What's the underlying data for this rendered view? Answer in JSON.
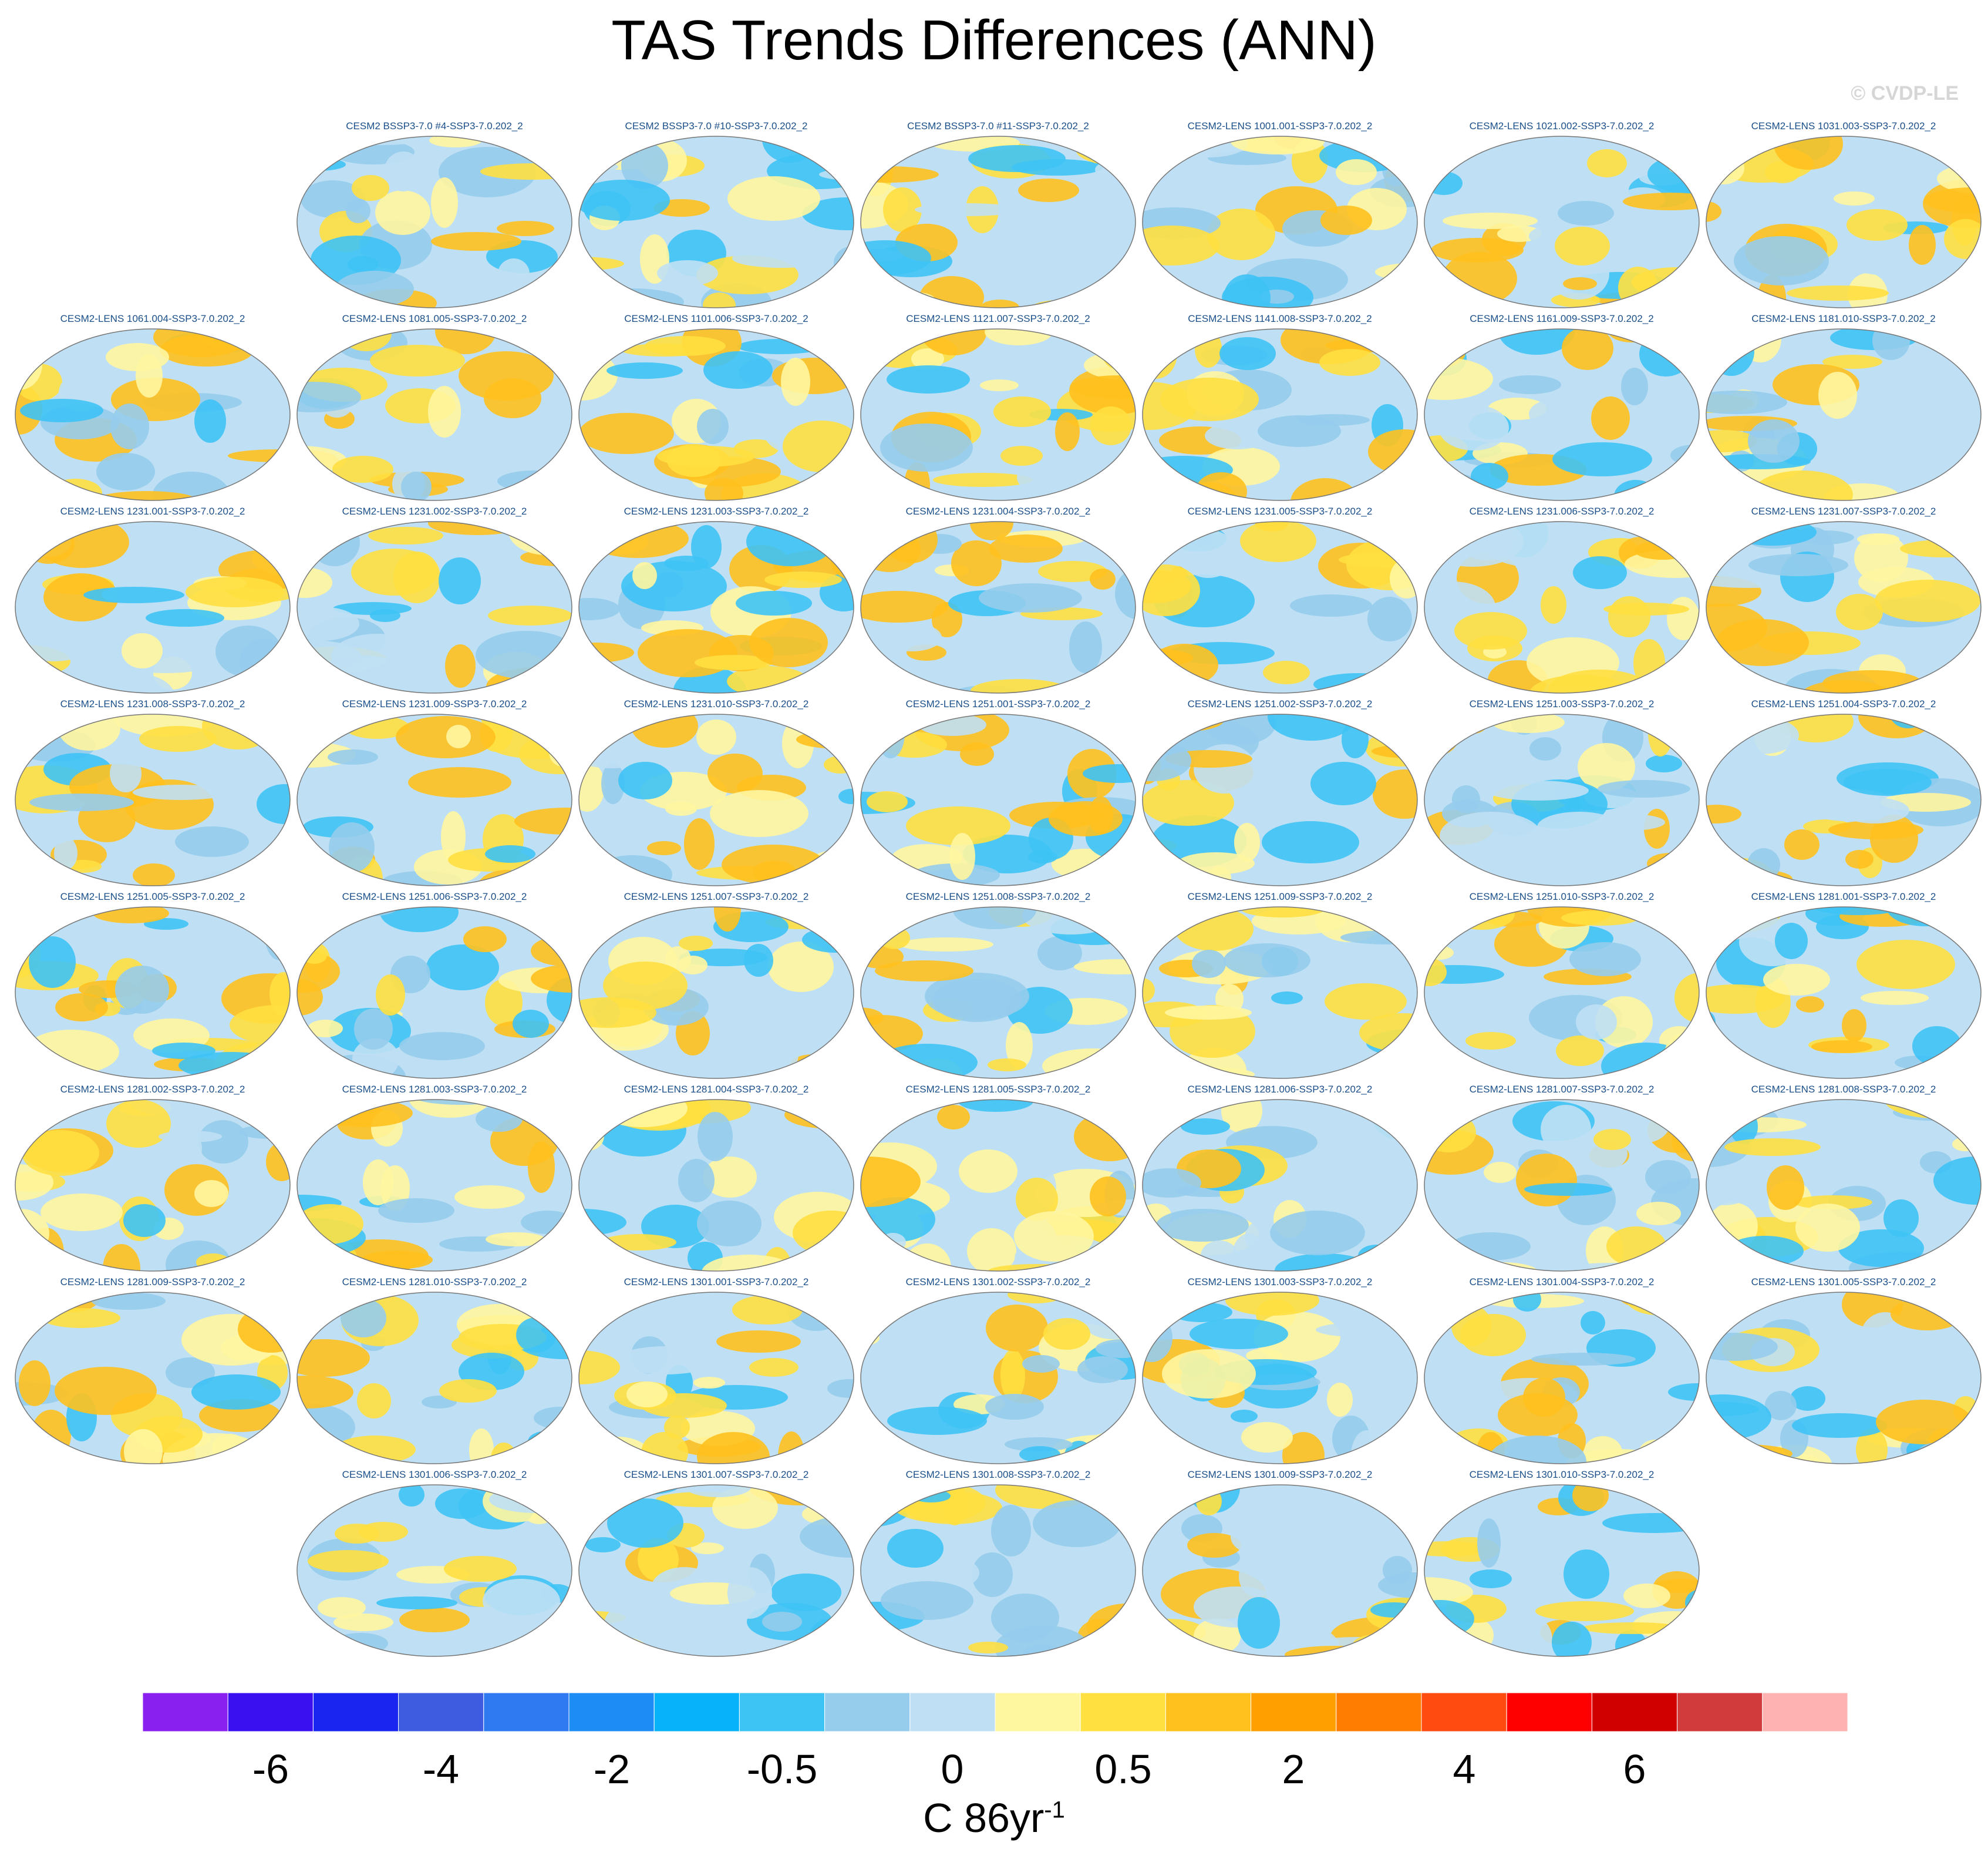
{
  "title": "TAS Trends Differences (ANN)",
  "watermark": "© CVDP-LE",
  "chart_data": {
    "type": "map-panels",
    "title": "TAS Trends Differences (ANN)",
    "projection": "Robinson global",
    "variable": "TAS trend differences",
    "panels": [
      "CESM2 BSSP3-7.0 #4-SSP3-7.0.202_2",
      "CESM2 BSSP3-7.0 #10-SSP3-7.0.202_2",
      "CESM2 BSSP3-7.0 #11-SSP3-7.0.202_2",
      "CESM2-LENS 1001.001-SSP3-7.0.202_2",
      "CESM2-LENS 1021.002-SSP3-7.0.202_2",
      "CESM2-LENS 1031.003-SSP3-7.0.202_2",
      "CESM2-LENS 1061.004-SSP3-7.0.202_2",
      "CESM2-LENS 1081.005-SSP3-7.0.202_2",
      "CESM2-LENS 1101.006-SSP3-7.0.202_2",
      "CESM2-LENS 1121.007-SSP3-7.0.202_2",
      "CESM2-LENS 1141.008-SSP3-7.0.202_2",
      "CESM2-LENS 1161.009-SSP3-7.0.202_2",
      "CESM2-LENS 1181.010-SSP3-7.0.202_2",
      "CESM2-LENS 1231.001-SSP3-7.0.202_2",
      "CESM2-LENS 1231.002-SSP3-7.0.202_2",
      "CESM2-LENS 1231.003-SSP3-7.0.202_2",
      "CESM2-LENS 1231.004-SSP3-7.0.202_2",
      "CESM2-LENS 1231.005-SSP3-7.0.202_2",
      "CESM2-LENS 1231.006-SSP3-7.0.202_2",
      "CESM2-LENS 1231.007-SSP3-7.0.202_2",
      "CESM2-LENS 1231.008-SSP3-7.0.202_2",
      "CESM2-LENS 1231.009-SSP3-7.0.202_2",
      "CESM2-LENS 1231.010-SSP3-7.0.202_2",
      "CESM2-LENS 1251.001-SSP3-7.0.202_2",
      "CESM2-LENS 1251.002-SSP3-7.0.202_2",
      "CESM2-LENS 1251.003-SSP3-7.0.202_2",
      "CESM2-LENS 1251.004-SSP3-7.0.202_2",
      "CESM2-LENS 1251.005-SSP3-7.0.202_2",
      "CESM2-LENS 1251.006-SSP3-7.0.202_2",
      "CESM2-LENS 1251.007-SSP3-7.0.202_2",
      "CESM2-LENS 1251.008-SSP3-7.0.202_2",
      "CESM2-LENS 1251.009-SSP3-7.0.202_2",
      "CESM2-LENS 1251.010-SSP3-7.0.202_2",
      "CESM2-LENS 1281.001-SSP3-7.0.202_2",
      "CESM2-LENS 1281.002-SSP3-7.0.202_2",
      "CESM2-LENS 1281.003-SSP3-7.0.202_2",
      "CESM2-LENS 1281.004-SSP3-7.0.202_2",
      "CESM2-LENS 1281.005-SSP3-7.0.202_2",
      "CESM2-LENS 1281.006-SSP3-7.0.202_2",
      "CESM2-LENS 1281.007-SSP3-7.0.202_2",
      "CESM2-LENS 1281.008-SSP3-7.0.202_2",
      "CESM2-LENS 1281.009-SSP3-7.0.202_2",
      "CESM2-LENS 1281.010-SSP3-7.0.202_2",
      "CESM2-LENS 1301.001-SSP3-7.0.202_2",
      "CESM2-LENS 1301.002-SSP3-7.0.202_2",
      "CESM2-LENS 1301.003-SSP3-7.0.202_2",
      "CESM2-LENS 1301.004-SSP3-7.0.202_2",
      "CESM2-LENS 1301.005-SSP3-7.0.202_2",
      "CESM2-LENS 1301.006-SSP3-7.0.202_2",
      "CESM2-LENS 1301.007-SSP3-7.0.202_2",
      "CESM2-LENS 1301.008-SSP3-7.0.202_2",
      "CESM2-LENS 1301.009-SSP3-7.0.202_2",
      "CESM2-LENS 1301.010-SSP3-7.0.202_2"
    ],
    "colorbar": {
      "units": "C 86yr",
      "units_exponent": "-1",
      "tick_labels": [
        "-6",
        "-4",
        "-2",
        "-0.5",
        "0",
        "0.5",
        "2",
        "4",
        "6"
      ],
      "colors": [
        "#8a20f0",
        "#3a10f0",
        "#1a26f0",
        "#3d5ce0",
        "#2f7af0",
        "#1e8cf5",
        "#07b2fa",
        "#3ec3f5",
        "#96ccec",
        "#bfe0f4",
        "#fff6a0",
        "#ffe040",
        "#ffc11e",
        "#ffa000",
        "#ff7d00",
        "#ff4a10",
        "#ff0000",
        "#d00000",
        "#d23b3b",
        "#ffb2b2"
      ]
    }
  }
}
